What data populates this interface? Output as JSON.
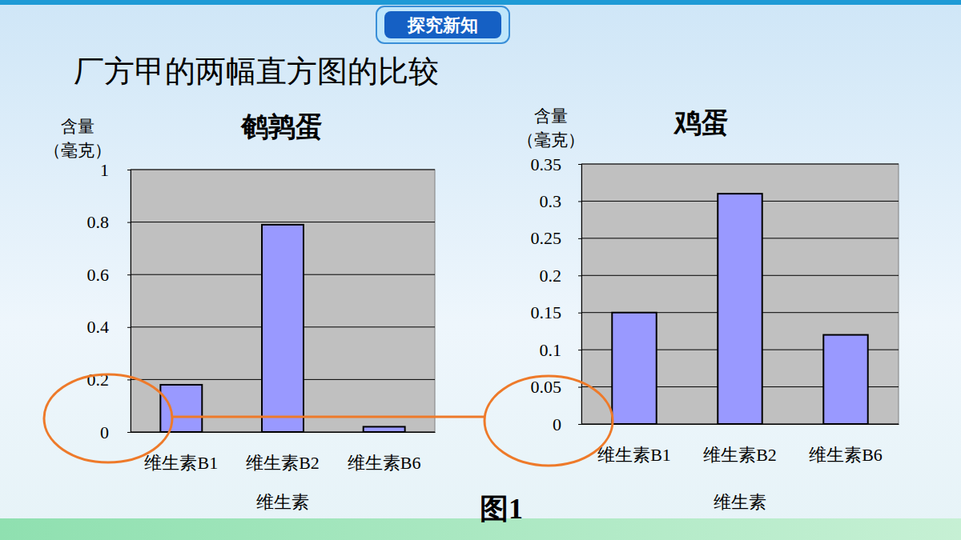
{
  "page": {
    "badge": "探究新知",
    "heading": "厂方甲的两幅直方图的比较",
    "figure_label": "图1"
  },
  "chart_data": [
    {
      "type": "bar",
      "title": "鹌鹑蛋",
      "y_label": [
        "含量",
        "（毫克）"
      ],
      "x_label": "维生素",
      "categories": [
        "维生素B1",
        "维生素B2",
        "维生素B6"
      ],
      "values": [
        0.18,
        0.79,
        0.02
      ],
      "color": "#9999ff",
      "ylim": [
        0,
        1
      ],
      "yticks": [
        0,
        0.2,
        0.4,
        0.6,
        0.8,
        1
      ],
      "grid": true
    },
    {
      "type": "bar",
      "title": "鸡蛋",
      "y_label": [
        "含量",
        "（毫克）"
      ],
      "x_label": "维生素",
      "categories": [
        "维生素B1",
        "维生素B2",
        "维生素B6"
      ],
      "values": [
        0.15,
        0.31,
        0.12
      ],
      "color": "#9999ff",
      "ylim": [
        0,
        0.35
      ],
      "yticks": [
        0,
        0.05,
        0.1,
        0.15,
        0.2,
        0.25,
        0.3,
        0.35
      ],
      "grid": true
    }
  ]
}
